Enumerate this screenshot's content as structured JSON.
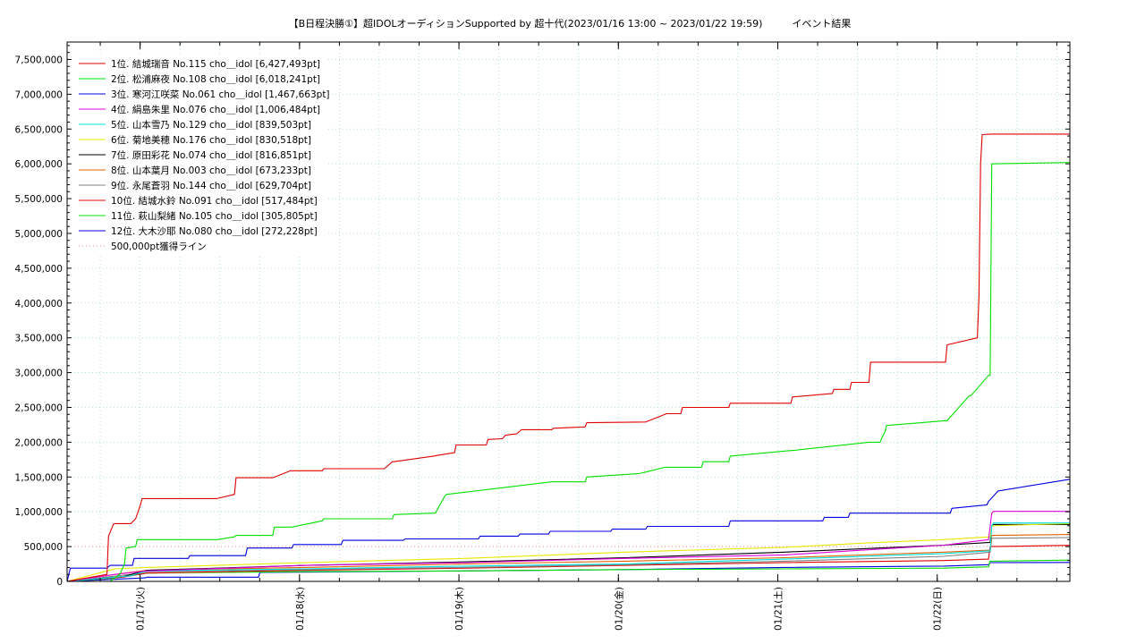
{
  "chart_data": {
    "type": "line",
    "title": "【B日程決勝①】超IDOLオーディションSupported by 超十代(2023/01/16 13:00 ~ 2023/01/22 19:59)　　　イベント結果",
    "xlabel": "",
    "ylabel": "",
    "ylim": [
      0,
      7750000
    ],
    "xlim": [
      0.0,
      6.29
    ],
    "grid": true,
    "legend_position": "top-left",
    "y_ticks": [
      0,
      500000,
      1000000,
      1500000,
      2000000,
      2500000,
      3000000,
      3500000,
      4000000,
      4500000,
      5000000,
      5500000,
      6000000,
      6500000,
      7000000,
      7500000
    ],
    "y_tick_labels": [
      "0",
      "500,000",
      "1,000,000",
      "1,500,000",
      "2,000,000",
      "2,500,000",
      "3,000,000",
      "3,500,000",
      "4,000,000",
      "4,500,000",
      "5,000,000",
      "5,500,000",
      "6,000,000",
      "6,500,000",
      "7,000,000",
      "7,500,000"
    ],
    "x_ticks": [
      0.458,
      1.458,
      2.458,
      3.458,
      4.458,
      5.458
    ],
    "x_tick_labels": [
      "01/17(火)",
      "01/18(水)",
      "01/19(木)",
      "01/20(金)",
      "01/21(土)",
      "01/22(日)"
    ],
    "reference_line": {
      "label": "500,000pt獲得ライン",
      "value": 500000,
      "color": "#ff8080"
    },
    "series": [
      {
        "name": " 1位. 結城瑞音 No.115 cho＿idol [6,427,493pt]",
        "color": "#e00000",
        "x": [
          0,
          0.25,
          0.26,
          0.29,
          0.3,
          0.4,
          0.43,
          0.46,
          0.47,
          0.94,
          1.05,
          1.06,
          1.29,
          1.39,
          1.4,
          1.6,
          1.61,
          1.99,
          2.04,
          2.05,
          2.3,
          2.32,
          2.43,
          2.44,
          2.63,
          2.64,
          2.73,
          2.75,
          2.78,
          2.82,
          2.85,
          3.04,
          3.05,
          3.25,
          3.26,
          3.63,
          3.75,
          3.76,
          3.85,
          3.86,
          4.15,
          4.16,
          4.54,
          4.55,
          4.8,
          4.81,
          4.91,
          4.92,
          5.03,
          5.04,
          5.51,
          5.52,
          5.71,
          5.72,
          5.73,
          5.74,
          5.8,
          5.84,
          5.85,
          5.88,
          5.89,
          6.29
        ],
        "values": [
          0,
          100000,
          650000,
          820000,
          830000,
          830000,
          900000,
          1100000,
          1190000,
          1190000,
          1250000,
          1490000,
          1490000,
          1580000,
          1590000,
          1590000,
          1620000,
          1620000,
          1720000,
          1720000,
          1800000,
          1810000,
          1850000,
          1960000,
          1960000,
          2040000,
          2050000,
          2100000,
          2110000,
          2120000,
          2180000,
          2180000,
          2200000,
          2220000,
          2280000,
          2290000,
          2400000,
          2410000,
          2410000,
          2500000,
          2500000,
          2560000,
          2560000,
          2650000,
          2700000,
          2760000,
          2760000,
          2860000,
          2860000,
          3150000,
          3150000,
          3400000,
          3500000,
          4100000,
          6000000,
          6420000,
          6427493,
          6427493,
          6427493,
          6427493,
          6427493,
          6427493
        ]
      },
      {
        "name": " 2位. 松浦麻夜 No.108 cho＿idol [6,018,241pt]",
        "color": "#00e000",
        "x": [
          0,
          0.27,
          0.33,
          0.36,
          0.37,
          0.43,
          0.44,
          0.94,
          1.05,
          1.06,
          1.29,
          1.3,
          1.41,
          1.6,
          1.61,
          2.04,
          2.05,
          2.3,
          2.31,
          2.37,
          2.38,
          3.04,
          3.05,
          3.25,
          3.26,
          3.59,
          3.63,
          3.75,
          3.76,
          3.98,
          3.99,
          4.15,
          4.16,
          4.54,
          4.55,
          5.03,
          5.04,
          5.1,
          5.11,
          5.13,
          5.14,
          5.51,
          5.52,
          5.66,
          5.67,
          5.78,
          5.79,
          5.8,
          6.29
        ],
        "values": [
          0,
          0,
          100000,
          250000,
          480000,
          500000,
          600000,
          600000,
          640000,
          660000,
          660000,
          780000,
          780000,
          870000,
          900000,
          900000,
          960000,
          980000,
          980000,
          1230000,
          1250000,
          1430000,
          1430000,
          1430000,
          1500000,
          1550000,
          1570000,
          1640000,
          1640000,
          1640000,
          1720000,
          1720000,
          1800000,
          1880000,
          1880000,
          2000000,
          2000000,
          2000000,
          2060000,
          2150000,
          2240000,
          2310000,
          2310000,
          2670000,
          2670000,
          2960000,
          2960000,
          6000000,
          6018241
        ]
      },
      {
        "name": " 3位. 寒河江咲菜 No.061 cho＿idol [1,467,663pt]",
        "color": "#0000e0",
        "x": [
          0,
          0.02,
          0.25,
          0.27,
          0.41,
          0.42,
          0.76,
          0.77,
          1.12,
          1.13,
          1.41,
          1.42,
          1.72,
          1.73,
          2.11,
          2.12,
          2.58,
          2.59,
          2.83,
          2.84,
          3.02,
          3.03,
          3.41,
          3.42,
          3.63,
          3.64,
          4.15,
          4.16,
          4.74,
          4.75,
          4.9,
          4.91,
          5.54,
          5.55,
          5.77,
          5.78,
          5.8,
          5.84,
          6.29
        ],
        "values": [
          0,
          190000,
          190000,
          230000,
          230000,
          330000,
          330000,
          370000,
          370000,
          480000,
          480000,
          530000,
          530000,
          590000,
          590000,
          610000,
          610000,
          650000,
          650000,
          680000,
          680000,
          720000,
          720000,
          750000,
          750000,
          790000,
          790000,
          870000,
          870000,
          920000,
          920000,
          980000,
          980000,
          1050000,
          1100000,
          1150000,
          1200000,
          1300000,
          1467663
        ]
      },
      {
        "name": " 4位. 絹島朱里 No.076 cho＿idol [1,006,484pt]",
        "color": "#e000e0",
        "x": [
          0,
          0.3,
          0.5,
          1.5,
          2.5,
          3.5,
          4.5,
          5.5,
          5.78,
          5.8,
          5.81,
          6.29
        ],
        "values": [
          0,
          100000,
          150000,
          230000,
          270000,
          330000,
          380000,
          520000,
          600000,
          980000,
          1006484,
          1006484
        ]
      },
      {
        "name": " 5位. 山本雪乃 No.129 cho＿idol [839,503pt]",
        "color": "#00e0e0",
        "x": [
          0,
          0.4,
          0.5,
          1.5,
          2.5,
          3.5,
          4.5,
          5.5,
          5.79,
          5.8,
          5.81,
          6.29
        ],
        "values": [
          0,
          80000,
          150000,
          180000,
          220000,
          250000,
          320000,
          400000,
          440000,
          800000,
          839503,
          839503
        ]
      },
      {
        "name": " 6位. 菊地美穂 No.176 cho＿idol [830,518pt]",
        "color": "#e8e800",
        "x": [
          0,
          0.3,
          0.5,
          1.5,
          2.5,
          3.5,
          4.5,
          5.0,
          5.5,
          5.79,
          5.8,
          6.29
        ],
        "values": [
          0,
          180000,
          200000,
          270000,
          330000,
          420000,
          490000,
          550000,
          600000,
          640000,
          800000,
          830518
        ]
      },
      {
        "name": " 7位. 原田彩花 No.074 cho＿idol [816,851pt]",
        "color": "#000000",
        "x": [
          0,
          0.35,
          0.5,
          1.5,
          2.5,
          3.5,
          4.5,
          5.5,
          5.79,
          5.8,
          5.81,
          6.29
        ],
        "values": [
          0,
          70000,
          160000,
          230000,
          280000,
          340000,
          420000,
          520000,
          560000,
          800000,
          816851,
          816851
        ]
      },
      {
        "name": " 8位. 山本葉月 No.003 cho＿idol [673,233pt]",
        "color": "#e06000",
        "x": [
          0,
          0.3,
          0.5,
          1.5,
          2.5,
          3.5,
          4.5,
          5.5,
          5.79,
          5.8,
          6.29
        ],
        "values": [
          0,
          100000,
          160000,
          200000,
          250000,
          290000,
          340000,
          420000,
          450000,
          660000,
          673233
        ]
      },
      {
        "name": " 9位. 永尾蒼羽 No.144 cho＿idol [629,704pt]",
        "color": "#808080",
        "x": [
          0,
          0.4,
          0.5,
          1.5,
          2.5,
          3.5,
          4.5,
          5.5,
          5.79,
          5.8,
          6.29
        ],
        "values": [
          0,
          100000,
          140000,
          170000,
          200000,
          240000,
          290000,
          360000,
          420000,
          620000,
          629704
        ]
      },
      {
        "name": "10位. 結城水鈴 No.091 cho＿idol [517,484pt]",
        "color": "#e00000",
        "x": [
          0,
          0.35,
          0.5,
          1.5,
          2.5,
          3.5,
          4.5,
          5.5,
          5.78,
          5.79,
          6.29
        ],
        "values": [
          0,
          60000,
          120000,
          160000,
          190000,
          230000,
          270000,
          300000,
          320000,
          500000,
          517484
        ]
      },
      {
        "name": "11位. 萩山梨緒 No.105 cho＿idol [305,805pt]",
        "color": "#00e000",
        "x": [
          0,
          0.3,
          0.5,
          1.5,
          2.5,
          3.5,
          4.5,
          5.5,
          5.78,
          5.79,
          6.29
        ],
        "values": [
          0,
          50000,
          120000,
          140000,
          150000,
          170000,
          180000,
          190000,
          210000,
          290000,
          305805
        ]
      },
      {
        "name": "12位. 大木沙耶 No.080 cho＿idol [272,228pt]",
        "color": "#0000e0",
        "x": [
          0,
          0.49,
          0.5,
          1.2,
          1.21,
          2.5,
          3.5,
          4.5,
          5.5,
          5.78,
          5.79,
          6.29
        ],
        "values": [
          0,
          50000,
          60000,
          60000,
          130000,
          150000,
          170000,
          200000,
          220000,
          240000,
          270000,
          272228
        ]
      }
    ]
  }
}
